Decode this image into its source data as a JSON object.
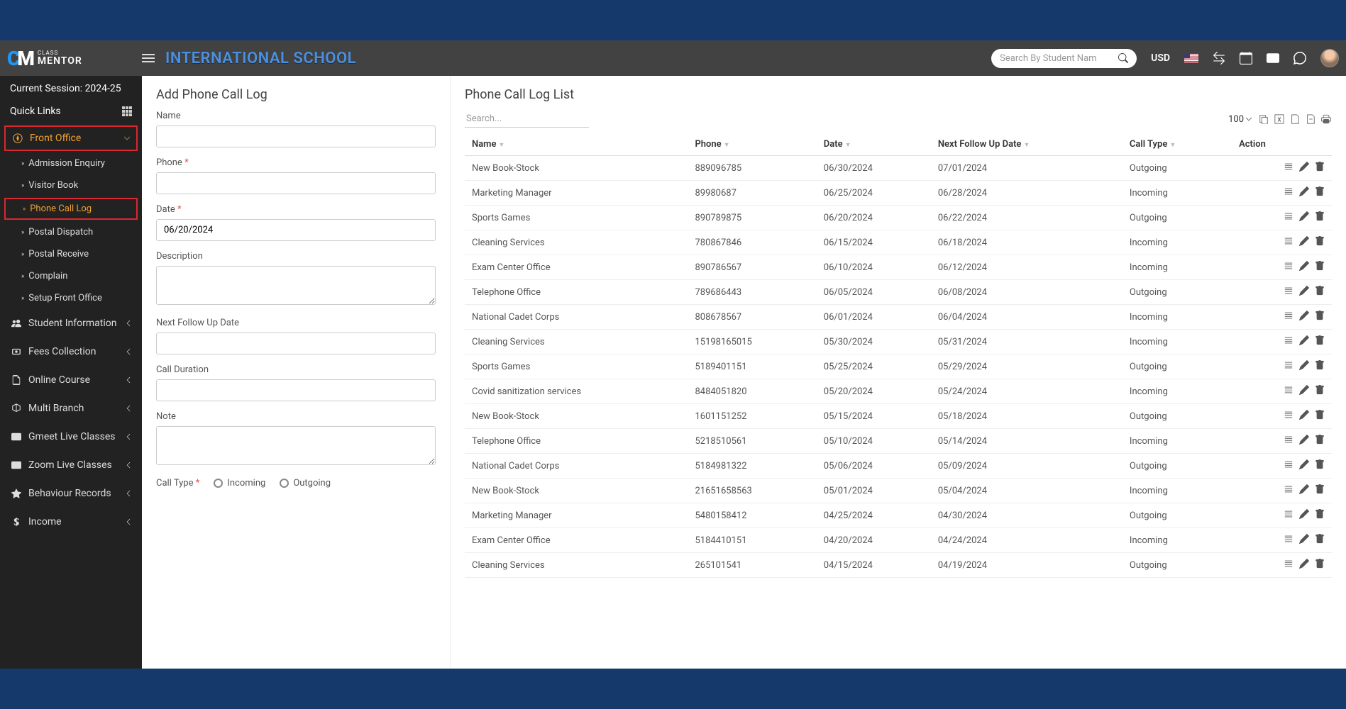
{
  "header": {
    "school_name": "INTERNATIONAL SCHOOL",
    "search_placeholder": "Search By Student Nam",
    "currency": "USD",
    "logo_class": "CLASS",
    "logo_mentor": "MENTOR"
  },
  "sidebar": {
    "session_label": "Current Session: 2024-25",
    "quicklinks_label": "Quick Links",
    "front_office": {
      "label": "Front Office",
      "items": [
        {
          "label": "Admission Enquiry"
        },
        {
          "label": "Visitor Book"
        },
        {
          "label": "Phone Call Log"
        },
        {
          "label": "Postal Dispatch"
        },
        {
          "label": "Postal Receive"
        },
        {
          "label": "Complain"
        },
        {
          "label": "Setup Front Office"
        }
      ]
    },
    "menu": [
      {
        "label": "Student Information"
      },
      {
        "label": "Fees Collection"
      },
      {
        "label": "Online Course"
      },
      {
        "label": "Multi Branch"
      },
      {
        "label": "Gmeet Live Classes"
      },
      {
        "label": "Zoom Live Classes"
      },
      {
        "label": "Behaviour Records"
      },
      {
        "label": "Income"
      }
    ]
  },
  "form": {
    "title": "Add Phone Call Log",
    "labels": {
      "name": "Name",
      "phone": "Phone",
      "date": "Date",
      "description": "Description",
      "next_followup": "Next Follow Up Date",
      "call_duration": "Call Duration",
      "note": "Note",
      "call_type": "Call Type",
      "incoming": "Incoming",
      "outgoing": "Outgoing"
    },
    "values": {
      "name": "",
      "phone": "",
      "date": "06/20/2024",
      "description": "",
      "next_followup": "",
      "call_duration": "",
      "note": ""
    }
  },
  "list": {
    "title": "Phone Call Log List",
    "search_placeholder": "Search...",
    "page_size": "100",
    "columns": {
      "name": "Name",
      "phone": "Phone",
      "date": "Date",
      "next_followup": "Next Follow Up Date",
      "call_type": "Call Type",
      "action": "Action"
    },
    "rows": [
      {
        "name": "New Book-Stock",
        "phone": "889096785",
        "date": "06/30/2024",
        "next": "07/01/2024",
        "type": "Outgoing"
      },
      {
        "name": "Marketing Manager",
        "phone": "89980687",
        "date": "06/25/2024",
        "next": "06/28/2024",
        "type": "Incoming"
      },
      {
        "name": "Sports Games",
        "phone": "890789875",
        "date": "06/20/2024",
        "next": "06/22/2024",
        "type": "Outgoing"
      },
      {
        "name": "Cleaning Services",
        "phone": "780867846",
        "date": "06/15/2024",
        "next": "06/18/2024",
        "type": "Incoming"
      },
      {
        "name": "Exam Center Office",
        "phone": "890786567",
        "date": "06/10/2024",
        "next": "06/12/2024",
        "type": "Incoming"
      },
      {
        "name": "Telephone Office",
        "phone": "789686443",
        "date": "06/05/2024",
        "next": "06/08/2024",
        "type": "Outgoing"
      },
      {
        "name": "National Cadet Corps",
        "phone": "808678567",
        "date": "06/01/2024",
        "next": "06/04/2024",
        "type": "Incoming"
      },
      {
        "name": "Cleaning Services",
        "phone": "15198165015",
        "date": "05/30/2024",
        "next": "05/31/2024",
        "type": "Incoming"
      },
      {
        "name": "Sports Games",
        "phone": "5189401151",
        "date": "05/25/2024",
        "next": "05/29/2024",
        "type": "Outgoing"
      },
      {
        "name": "Covid sanitization services",
        "phone": "8484051820",
        "date": "05/20/2024",
        "next": "05/24/2024",
        "type": "Incoming"
      },
      {
        "name": "New Book-Stock",
        "phone": "1601151252",
        "date": "05/15/2024",
        "next": "05/18/2024",
        "type": "Outgoing"
      },
      {
        "name": "Telephone Office",
        "phone": "5218510561",
        "date": "05/10/2024",
        "next": "05/14/2024",
        "type": "Incoming"
      },
      {
        "name": "National Cadet Corps",
        "phone": "5184981322",
        "date": "05/06/2024",
        "next": "05/09/2024",
        "type": "Outgoing"
      },
      {
        "name": "New Book-Stock",
        "phone": "21651658563",
        "date": "05/01/2024",
        "next": "05/04/2024",
        "type": "Incoming"
      },
      {
        "name": "Marketing Manager",
        "phone": "5480158412",
        "date": "04/25/2024",
        "next": "04/30/2024",
        "type": "Outgoing"
      },
      {
        "name": "Exam Center Office",
        "phone": "5184410151",
        "date": "04/20/2024",
        "next": "04/24/2024",
        "type": "Incoming"
      },
      {
        "name": "Cleaning Services",
        "phone": "265101541",
        "date": "04/15/2024",
        "next": "04/19/2024",
        "type": "Outgoing"
      }
    ]
  }
}
